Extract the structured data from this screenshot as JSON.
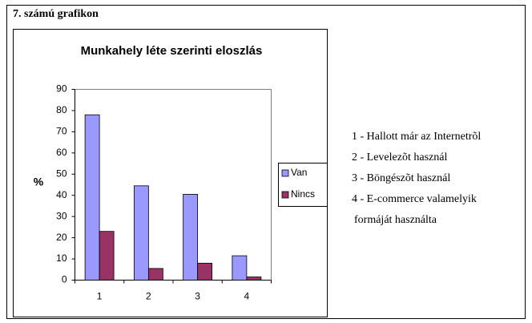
{
  "heading": "7. számú grafikon",
  "chart_data": {
    "type": "bar",
    "title": "Munkahely léte szerinti eloszlás",
    "y_label": "%",
    "categories": [
      "1",
      "2",
      "3",
      "4"
    ],
    "series": [
      {
        "name": "Van",
        "color": "#9999ff",
        "values": [
          78,
          44.5,
          40.5,
          11.5
        ]
      },
      {
        "name": "Nincs",
        "color": "#993366",
        "values": [
          23,
          5.5,
          8,
          1.5
        ]
      }
    ],
    "ylim": [
      0,
      90
    ],
    "yticks": [
      0,
      10,
      20,
      30,
      40,
      50,
      60,
      70,
      80,
      90
    ],
    "legend": "right"
  },
  "notes": [
    "1 - Hallott már az Internetrõl",
    "2 - Levelezõt használ",
    "3 - Böngészõt használ",
    "4 - E-commerce valamelyik",
    "formáját használta"
  ]
}
